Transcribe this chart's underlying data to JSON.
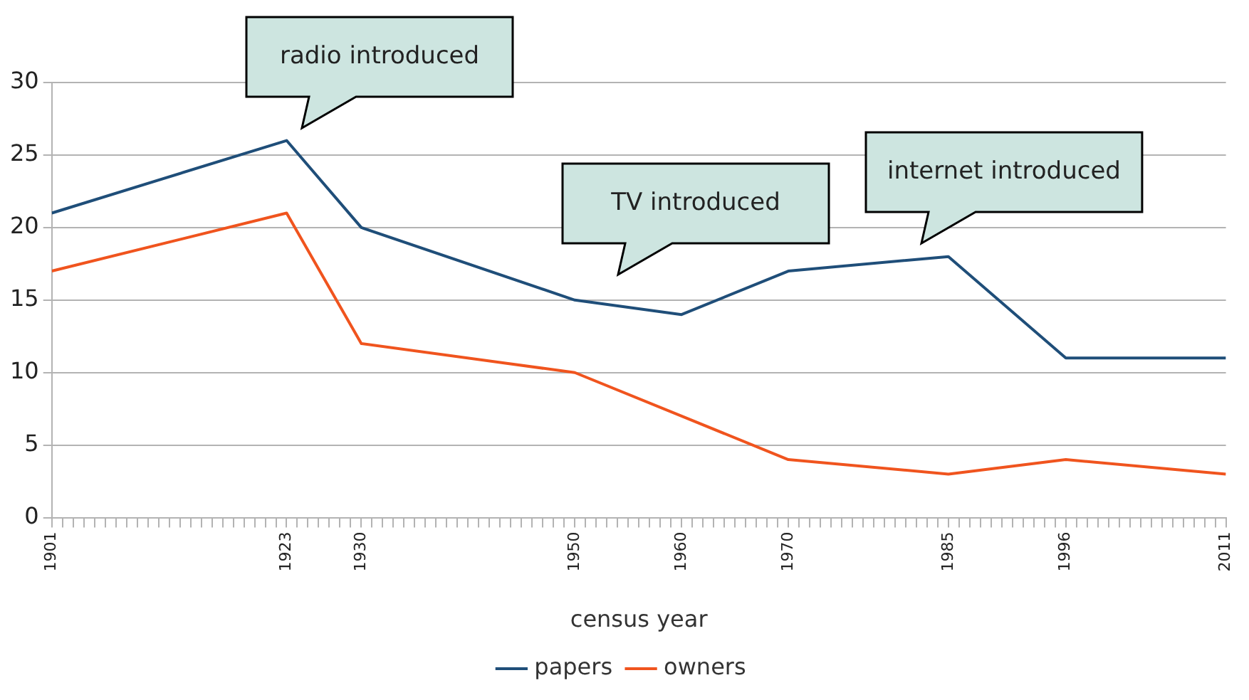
{
  "chart_data": {
    "type": "line",
    "xlabel": "census year",
    "x": [
      1901,
      1923,
      1930,
      1950,
      1960,
      1970,
      1985,
      1996,
      2011
    ],
    "series": [
      {
        "name": "papers",
        "color": "#1f4e79",
        "values": [
          21,
          26,
          20,
          15,
          14,
          17,
          18,
          11,
          11
        ]
      },
      {
        "name": "owners",
        "color": "#f0541e",
        "values": [
          17,
          21,
          12,
          10,
          7,
          4,
          3,
          4,
          3
        ]
      }
    ],
    "xlim": [
      1901,
      2011
    ],
    "xticks": [
      1901,
      {
        "value": 1902,
        "label": null
      },
      {
        "value": 1903,
        "label": null
      },
      {
        "value": 1904,
        "label": null
      },
      {
        "value": 1905,
        "label": null
      },
      {
        "value": 1906,
        "label": null
      },
      {
        "value": 1907,
        "label": null
      },
      {
        "value": 1908,
        "label": null
      },
      {
        "value": 1909,
        "label": null
      },
      {
        "value": 1910,
        "label": null
      },
      {
        "value": 1911,
        "label": null
      },
      {
        "value": 1912,
        "label": null
      },
      {
        "value": 1913,
        "label": null
      },
      {
        "value": 1914,
        "label": null
      },
      {
        "value": 1915,
        "label": null
      },
      {
        "value": 1916,
        "label": null
      },
      {
        "value": 1917,
        "label": null
      },
      {
        "value": 1918,
        "label": null
      },
      {
        "value": 1919,
        "label": null
      },
      {
        "value": 1920,
        "label": null
      },
      {
        "value": 1921,
        "label": null
      },
      {
        "value": 1922,
        "label": null
      },
      1923,
      {
        "value": 1924,
        "label": null
      },
      {
        "value": 1925,
        "label": null
      },
      {
        "value": 1926,
        "label": null
      },
      {
        "value": 1927,
        "label": null
      },
      {
        "value": 1928,
        "label": null
      },
      {
        "value": 1929,
        "label": null
      },
      1930,
      {
        "value": 1931,
        "label": null
      },
      {
        "value": 1932,
        "label": null
      },
      {
        "value": 1933,
        "label": null
      },
      {
        "value": 1934,
        "label": null
      },
      {
        "value": 1935,
        "label": null
      },
      {
        "value": 1936,
        "label": null
      },
      {
        "value": 1937,
        "label": null
      },
      {
        "value": 1938,
        "label": null
      },
      {
        "value": 1939,
        "label": null
      },
      {
        "value": 1940,
        "label": null
      },
      {
        "value": 1941,
        "label": null
      },
      {
        "value": 1942,
        "label": null
      },
      {
        "value": 1943,
        "label": null
      },
      {
        "value": 1944,
        "label": null
      },
      {
        "value": 1945,
        "label": null
      },
      {
        "value": 1946,
        "label": null
      },
      {
        "value": 1947,
        "label": null
      },
      {
        "value": 1948,
        "label": null
      },
      {
        "value": 1949,
        "label": null
      },
      1950,
      {
        "value": 1951,
        "label": null
      },
      {
        "value": 1952,
        "label": null
      },
      {
        "value": 1953,
        "label": null
      },
      {
        "value": 1954,
        "label": null
      },
      {
        "value": 1955,
        "label": null
      },
      {
        "value": 1956,
        "label": null
      },
      {
        "value": 1957,
        "label": null
      },
      {
        "value": 1958,
        "label": null
      },
      {
        "value": 1959,
        "label": null
      },
      1960,
      {
        "value": 1961,
        "label": null
      },
      {
        "value": 1962,
        "label": null
      },
      {
        "value": 1963,
        "label": null
      },
      {
        "value": 1964,
        "label": null
      },
      {
        "value": 1965,
        "label": null
      },
      {
        "value": 1966,
        "label": null
      },
      {
        "value": 1967,
        "label": null
      },
      {
        "value": 1968,
        "label": null
      },
      {
        "value": 1969,
        "label": null
      },
      1970,
      {
        "value": 1971,
        "label": null
      },
      {
        "value": 1972,
        "label": null
      },
      {
        "value": 1973,
        "label": null
      },
      {
        "value": 1974,
        "label": null
      },
      {
        "value": 1975,
        "label": null
      },
      {
        "value": 1976,
        "label": null
      },
      {
        "value": 1977,
        "label": null
      },
      {
        "value": 1978,
        "label": null
      },
      {
        "value": 1979,
        "label": null
      },
      {
        "value": 1980,
        "label": null
      },
      {
        "value": 1981,
        "label": null
      },
      {
        "value": 1982,
        "label": null
      },
      {
        "value": 1983,
        "label": null
      },
      {
        "value": 1984,
        "label": null
      },
      1985,
      {
        "value": 1986,
        "label": null
      },
      {
        "value": 1987,
        "label": null
      },
      {
        "value": 1988,
        "label": null
      },
      {
        "value": 1989,
        "label": null
      },
      {
        "value": 1990,
        "label": null
      },
      {
        "value": 1991,
        "label": null
      },
      {
        "value": 1992,
        "label": null
      },
      {
        "value": 1993,
        "label": null
      },
      {
        "value": 1994,
        "label": null
      },
      {
        "value": 1995,
        "label": null
      },
      1996,
      {
        "value": 1997,
        "label": null
      },
      {
        "value": 1998,
        "label": null
      },
      {
        "value": 1999,
        "label": null
      },
      {
        "value": 2000,
        "label": null
      },
      {
        "value": 2001,
        "label": null
      },
      {
        "value": 2002,
        "label": null
      },
      {
        "value": 2003,
        "label": null
      },
      {
        "value": 2004,
        "label": null
      },
      {
        "value": 2005,
        "label": null
      },
      {
        "value": 2006,
        "label": null
      },
      {
        "value": 2007,
        "label": null
      },
      {
        "value": 2008,
        "label": null
      },
      {
        "value": 2009,
        "label": null
      },
      {
        "value": 2010,
        "label": null
      },
      2011
    ],
    "ylim": [
      0,
      30
    ],
    "yticks": [
      0,
      5,
      10,
      15,
      20,
      25,
      30
    ],
    "grid": "y",
    "legend": "bottom",
    "marker": "none",
    "line_style": "solid",
    "annotations": [
      "radio introduced",
      "TV introduced",
      "internet introduced"
    ]
  }
}
